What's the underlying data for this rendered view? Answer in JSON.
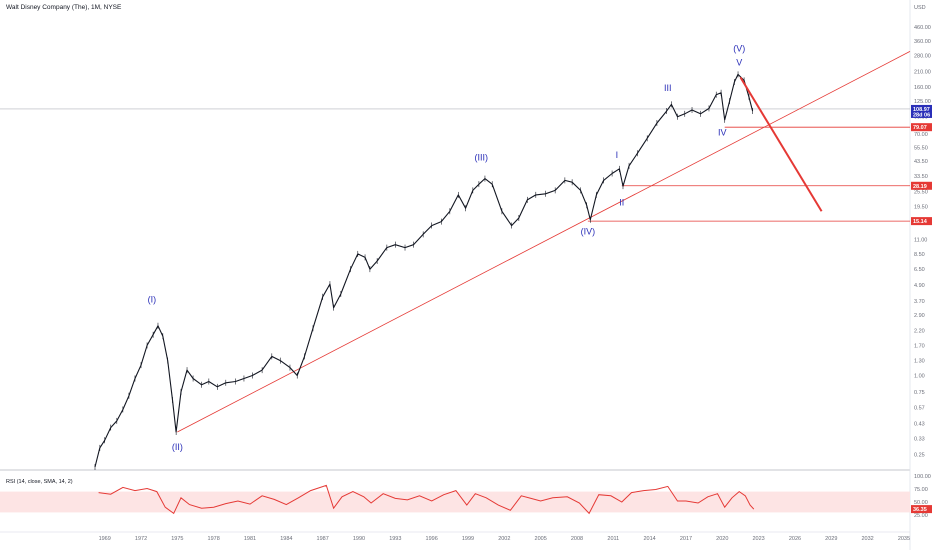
{
  "chart_data": {
    "type": "line",
    "title": "Walt Disney Company (The), 1M, NYSE",
    "y_axis": {
      "unit_label": "USD",
      "scale": "log",
      "ticks": [
        0.25,
        0.33,
        0.43,
        0.57,
        0.75,
        1.0,
        1.3,
        1.7,
        2.2,
        2.9,
        3.7,
        4.9,
        6.5,
        8.5,
        11.0,
        15.0,
        19.5,
        25.5,
        33.5,
        43.5,
        55.5,
        70.0,
        95.0,
        125.0,
        160.0,
        210.0,
        280.0,
        360.0,
        460.0
      ],
      "tick_labels": [
        "0.25",
        "0.33",
        "0.43",
        "0.57",
        "0.75",
        "1.00",
        "1.30",
        "1.70",
        "2.20",
        "2.90",
        "3.70",
        "4.90",
        "6.50",
        "8.50",
        "11.00",
        "15.00",
        "19.50",
        "25.50",
        "33.50",
        "43.50",
        "55.50",
        "70.00",
        "95.00",
        "125.00",
        "160.00",
        "210.00",
        "280.00",
        "360.00",
        "460.00"
      ],
      "range": [
        0.2,
        600
      ]
    },
    "x_axis": {
      "ticks": [
        1969,
        1972,
        1975,
        1978,
        1981,
        1984,
        1987,
        1990,
        1993,
        1996,
        1999,
        2002,
        2005,
        2008,
        2011,
        2014,
        2017,
        2020,
        2023,
        2026,
        2029,
        2032,
        2035
      ],
      "tick_labels": [
        "1969",
        "1972",
        "1975",
        "1978",
        "1981",
        "1984",
        "1987",
        "1990",
        "1993",
        "1996",
        "1999",
        "2002",
        "2005",
        "2008",
        "2011",
        "2014",
        "2017",
        "2020",
        "2023",
        "2026",
        "2029",
        "2032",
        "2035"
      ],
      "range": [
        1968.2,
        2035.5
      ]
    },
    "price_series": {
      "name": "DIS",
      "points": [
        [
          1968.2,
          0.2
        ],
        [
          1968.6,
          0.28
        ],
        [
          1969.0,
          0.32
        ],
        [
          1969.5,
          0.4
        ],
        [
          1970.0,
          0.45
        ],
        [
          1970.5,
          0.55
        ],
        [
          1971.0,
          0.7
        ],
        [
          1971.5,
          0.95
        ],
        [
          1972.0,
          1.2
        ],
        [
          1972.5,
          1.7
        ],
        [
          1973.0,
          2.05
        ],
        [
          1973.4,
          2.4
        ],
        [
          1973.8,
          2.0
        ],
        [
          1974.2,
          1.3
        ],
        [
          1974.6,
          0.65
        ],
        [
          1974.9,
          0.37
        ],
        [
          1975.3,
          0.75
        ],
        [
          1975.8,
          1.1
        ],
        [
          1976.3,
          0.95
        ],
        [
          1977.0,
          0.85
        ],
        [
          1977.6,
          0.9
        ],
        [
          1978.3,
          0.82
        ],
        [
          1979.0,
          0.88
        ],
        [
          1979.8,
          0.9
        ],
        [
          1980.5,
          0.95
        ],
        [
          1981.2,
          1.0
        ],
        [
          1982.0,
          1.1
        ],
        [
          1982.8,
          1.4
        ],
        [
          1983.5,
          1.3
        ],
        [
          1984.3,
          1.15
        ],
        [
          1984.9,
          1.0
        ],
        [
          1985.5,
          1.4
        ],
        [
          1986.2,
          2.3
        ],
        [
          1987.0,
          4.0
        ],
        [
          1987.6,
          5.0
        ],
        [
          1987.9,
          3.3
        ],
        [
          1988.5,
          4.2
        ],
        [
          1989.3,
          6.5
        ],
        [
          1989.9,
          8.5
        ],
        [
          1990.5,
          8.0
        ],
        [
          1990.9,
          6.5
        ],
        [
          1991.5,
          7.5
        ],
        [
          1992.3,
          9.5
        ],
        [
          1993.0,
          10.0
        ],
        [
          1993.8,
          9.5
        ],
        [
          1994.5,
          10.0
        ],
        [
          1995.3,
          12.0
        ],
        [
          1996.0,
          14.0
        ],
        [
          1996.8,
          15.0
        ],
        [
          1997.5,
          18.0
        ],
        [
          1998.2,
          24.0
        ],
        [
          1998.8,
          19.0
        ],
        [
          1999.4,
          26.0
        ],
        [
          1999.9,
          29.0
        ],
        [
          2000.4,
          32.0
        ],
        [
          2001.0,
          29.0
        ],
        [
          2001.8,
          18.0
        ],
        [
          2002.6,
          14.0
        ],
        [
          2003.2,
          16.0
        ],
        [
          2003.9,
          22.0
        ],
        [
          2004.6,
          24.0
        ],
        [
          2005.4,
          24.5
        ],
        [
          2006.2,
          26.0
        ],
        [
          2007.0,
          31.0
        ],
        [
          2007.6,
          30.0
        ],
        [
          2008.3,
          26.0
        ],
        [
          2008.8,
          20.0
        ],
        [
          2009.1,
          15.5
        ],
        [
          2009.6,
          24.0
        ],
        [
          2010.2,
          31.0
        ],
        [
          2010.9,
          35.0
        ],
        [
          2011.5,
          38.0
        ],
        [
          2011.8,
          28.0
        ],
        [
          2012.3,
          40.0
        ],
        [
          2013.0,
          50.0
        ],
        [
          2013.8,
          65.0
        ],
        [
          2014.6,
          85.0
        ],
        [
          2015.4,
          105.0
        ],
        [
          2015.8,
          118.0
        ],
        [
          2016.3,
          95.0
        ],
        [
          2016.9,
          100.0
        ],
        [
          2017.5,
          107.0
        ],
        [
          2018.2,
          100.0
        ],
        [
          2018.9,
          110.0
        ],
        [
          2019.5,
          140.0
        ],
        [
          2019.9,
          145.0
        ],
        [
          2020.2,
          90.0
        ],
        [
          2020.6,
          125.0
        ],
        [
          2021.0,
          175.0
        ],
        [
          2021.3,
          200.0
        ],
        [
          2021.8,
          180.0
        ],
        [
          2022.2,
          135.0
        ],
        [
          2022.5,
          105.0
        ]
      ]
    },
    "rsi": {
      "label": "RSI (14, close, SMA, 14, 2)",
      "y_ticks": [
        25.0,
        50.0,
        75.0,
        100.0
      ],
      "y_tick_labels": [
        "25.00",
        "50.00",
        "75.00",
        "100.00"
      ],
      "band": [
        30,
        70
      ],
      "range": [
        0,
        100
      ],
      "current": 36.35,
      "current_label": "36.35",
      "points": [
        [
          1968.5,
          68
        ],
        [
          1969.5,
          65
        ],
        [
          1970.5,
          78
        ],
        [
          1971.5,
          72
        ],
        [
          1972.5,
          76
        ],
        [
          1973.3,
          70
        ],
        [
          1974.0,
          40
        ],
        [
          1974.7,
          28
        ],
        [
          1975.3,
          58
        ],
        [
          1976.0,
          45
        ],
        [
          1977.0,
          38
        ],
        [
          1978.0,
          40
        ],
        [
          1979.0,
          47
        ],
        [
          1980.0,
          52
        ],
        [
          1981.0,
          46
        ],
        [
          1982.0,
          62
        ],
        [
          1983.0,
          55
        ],
        [
          1984.0,
          45
        ],
        [
          1985.0,
          58
        ],
        [
          1986.0,
          72
        ],
        [
          1987.3,
          82
        ],
        [
          1987.9,
          38
        ],
        [
          1988.6,
          60
        ],
        [
          1989.5,
          70
        ],
        [
          1990.4,
          60
        ],
        [
          1991.0,
          48
        ],
        [
          1992.0,
          66
        ],
        [
          1993.0,
          57
        ],
        [
          1994.0,
          54
        ],
        [
          1995.0,
          62
        ],
        [
          1996.0,
          52
        ],
        [
          1997.0,
          64
        ],
        [
          1998.0,
          72
        ],
        [
          1998.9,
          44
        ],
        [
          1999.6,
          66
        ],
        [
          2000.5,
          58
        ],
        [
          2001.5,
          44
        ],
        [
          2002.5,
          34
        ],
        [
          2003.4,
          62
        ],
        [
          2004.2,
          57
        ],
        [
          2005.0,
          52
        ],
        [
          2006.0,
          58
        ],
        [
          2007.2,
          60
        ],
        [
          2008.2,
          48
        ],
        [
          2009.0,
          28
        ],
        [
          2009.8,
          64
        ],
        [
          2010.8,
          62
        ],
        [
          2011.7,
          50
        ],
        [
          2012.5,
          68
        ],
        [
          2013.5,
          72
        ],
        [
          2014.5,
          74
        ],
        [
          2015.5,
          80
        ],
        [
          2016.3,
          52
        ],
        [
          2017.0,
          52
        ],
        [
          2018.0,
          48
        ],
        [
          2018.8,
          60
        ],
        [
          2019.6,
          66
        ],
        [
          2020.2,
          40
        ],
        [
          2020.8,
          58
        ],
        [
          2021.4,
          70
        ],
        [
          2021.9,
          62
        ],
        [
          2022.3,
          44
        ],
        [
          2022.6,
          36.35
        ]
      ]
    },
    "price_tags": [
      {
        "value": 108.97,
        "label": "108.97",
        "sublabel": "28d 06",
        "color": "#2a2fb8"
      },
      {
        "value": 79.07,
        "label": "79.07",
        "color": "#e53935"
      },
      {
        "value": 28.19,
        "label": "28.19",
        "color": "#e53935"
      },
      {
        "value": 15.14,
        "label": "15.14",
        "color": "#e53935"
      }
    ],
    "wave_labels": [
      {
        "text": "(I)",
        "x": 1972.9,
        "y": 3.6
      },
      {
        "text": "(II)",
        "x": 1975.0,
        "y": 0.27
      },
      {
        "text": "(III)",
        "x": 2000.1,
        "y": 44.0
      },
      {
        "text": "(IV)",
        "x": 2008.9,
        "y": 12.0
      },
      {
        "text": "(V)",
        "x": 2021.4,
        "y": 300.0
      },
      {
        "text": "I",
        "x": 2011.3,
        "y": 46.0
      },
      {
        "text": "II",
        "x": 2011.7,
        "y": 20.0
      },
      {
        "text": "III",
        "x": 2015.5,
        "y": 150.0
      },
      {
        "text": "IV",
        "x": 2020.0,
        "y": 68.0
      },
      {
        "text": "V",
        "x": 2021.4,
        "y": 235.0
      }
    ],
    "trendline": {
      "from": [
        1975.0,
        0.37
      ],
      "to": [
        2035.5,
        300.0
      ]
    },
    "projection": {
      "from": [
        2021.5,
        190.0
      ],
      "to": [
        2028.2,
        18.0
      ]
    },
    "horizontal_levels": [
      {
        "value": 79.07,
        "from_x": 2020.2
      },
      {
        "value": 28.19,
        "from_x": 2011.7
      },
      {
        "value": 15.14,
        "from_x": 2008.9
      }
    ],
    "current_price_line": 108.97
  }
}
